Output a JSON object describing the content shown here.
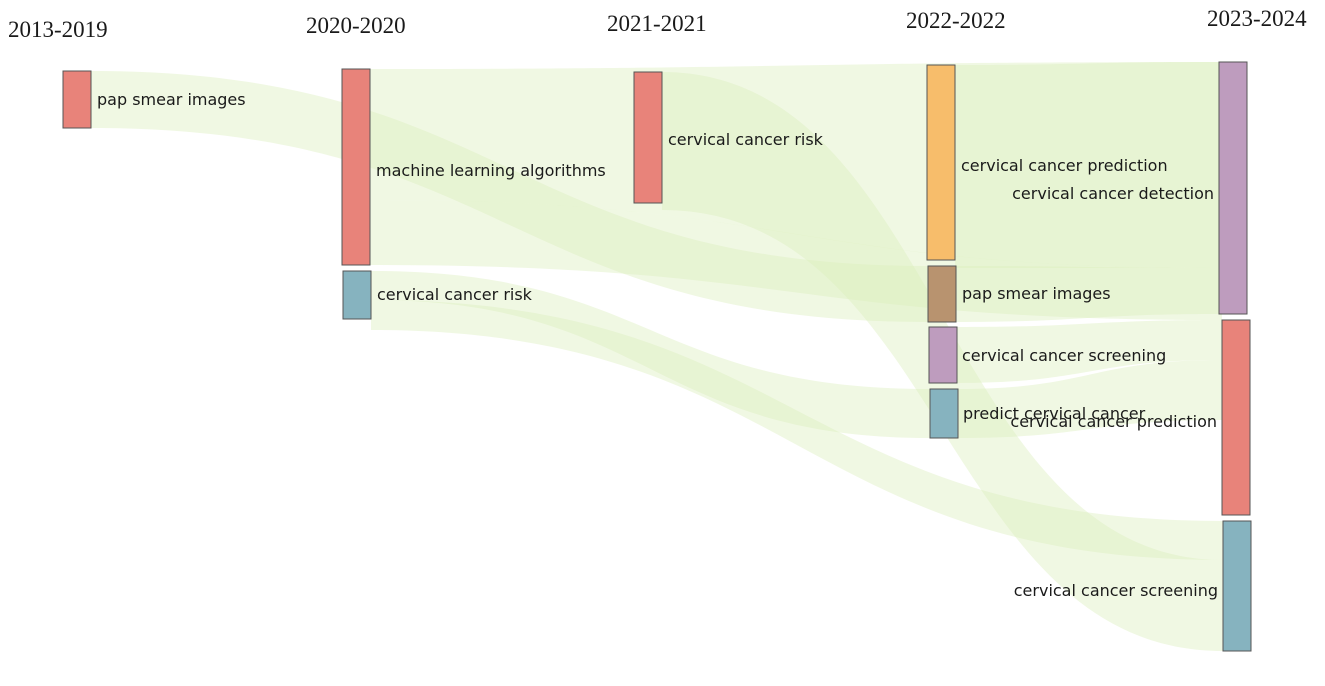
{
  "periods": [
    "2013-2019",
    "2020-2020",
    "2021-2021",
    "2022-2022",
    "2023-2024"
  ],
  "colors": {
    "red": "#e8837a",
    "teal": "#86b3bf",
    "orange": "#f7bd6b",
    "brown": "#b8936f",
    "purple": "#be9cbe",
    "flow": "#dcefbd"
  },
  "nodes": [
    {
      "id": "n1",
      "label": "pap smear images",
      "period": 0,
      "color": "red"
    },
    {
      "id": "n2",
      "label": "machine learning algorithms",
      "period": 1,
      "color": "red"
    },
    {
      "id": "n3",
      "label": "cervical cancer risk",
      "period": 1,
      "color": "teal"
    },
    {
      "id": "n4",
      "label": "cervical cancer risk",
      "period": 2,
      "color": "red"
    },
    {
      "id": "n5",
      "label": "cervical cancer prediction",
      "period": 3,
      "color": "orange"
    },
    {
      "id": "n6",
      "label": "pap smear images",
      "period": 3,
      "color": "brown"
    },
    {
      "id": "n7",
      "label": "cervical cancer screening",
      "period": 3,
      "color": "purple"
    },
    {
      "id": "n8",
      "label": "predict cervical cancer",
      "period": 3,
      "color": "teal"
    },
    {
      "id": "n9",
      "label": "cervical cancer detection",
      "period": 4,
      "color": "purple"
    },
    {
      "id": "n10",
      "label": "cervical cancer prediction",
      "period": 4,
      "color": "red"
    },
    {
      "id": "n11",
      "label": "cervical cancer screening",
      "period": 4,
      "color": "teal"
    }
  ],
  "flows": [
    {
      "from": "n1",
      "to": "n6"
    },
    {
      "from": "n2",
      "to": "n9"
    },
    {
      "from": "n2",
      "to": "n10"
    },
    {
      "from": "n3",
      "to": "n8"
    },
    {
      "from": "n3",
      "to": "n11"
    },
    {
      "from": "n4",
      "to": "n11"
    },
    {
      "from": "n5",
      "to": "n9"
    },
    {
      "from": "n6",
      "to": "n9"
    },
    {
      "from": "n7",
      "to": "n10"
    },
    {
      "from": "n8",
      "to": "n10"
    }
  ]
}
